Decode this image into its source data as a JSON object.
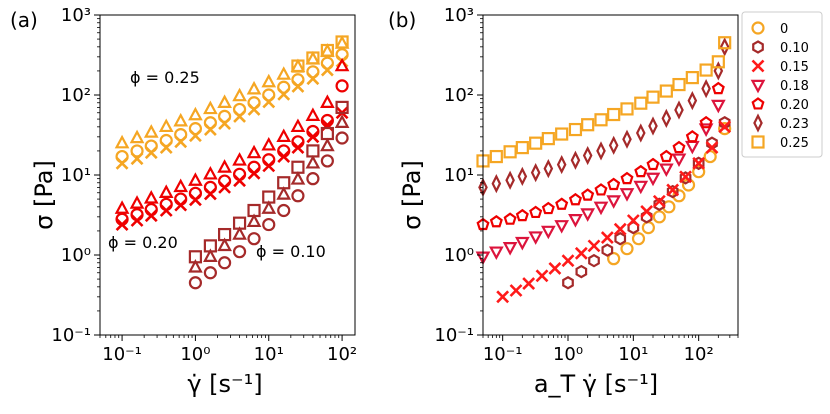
{
  "colors": {
    "phi_0": "#f5a623",
    "phi_0.10": "#a52a2a",
    "phi_0.15": "#ff1a1a",
    "phi_0.18": "#dc143c",
    "phi_0.20": "#ee0000",
    "phi_0.23": "#a52a2a",
    "phi_0.25": "#f5a623",
    "panel_a_low": "#a52a2a",
    "panel_a_mid": "#ee0000",
    "panel_a_high": "#f5a623"
  },
  "chart_data": [
    {
      "type": "scatter",
      "panel_label": "(a)",
      "xlabel": "γ̇ [s⁻¹]",
      "ylabel": "σ [Pa]",
      "xscale": "log",
      "yscale": "log",
      "xlim": [
        0.05,
        150
      ],
      "ylim": [
        0.1,
        1000
      ],
      "xticks": [
        "10⁻¹",
        "10⁰",
        "10¹",
        "10²"
      ],
      "yticks": [
        "10⁻¹",
        "10⁰",
        "10¹",
        "10²",
        "10³"
      ],
      "annotations": [
        {
          "text": "ϕ = 0.25",
          "x": 0.12,
          "y": 180
        },
        {
          "text": "ϕ = 0.20",
          "x": 0.07,
          "y": 1.3
        },
        {
          "text": "ϕ = 0.10",
          "x": 12,
          "y": 1.1
        }
      ],
      "series": [
        {
          "group": "0.25",
          "marker": "circle",
          "color_key": "panel_a_high",
          "x": [
            0.1,
            0.16,
            0.25,
            0.4,
            0.63,
            1,
            1.6,
            2.5,
            4,
            6.3,
            10,
            16,
            25,
            40,
            63,
            100
          ],
          "y": [
            17,
            20,
            23,
            27,
            32,
            38,
            45,
            54,
            66,
            80,
            100,
            125,
            155,
            195,
            250,
            320
          ]
        },
        {
          "group": "0.25",
          "marker": "x",
          "color_key": "panel_a_high",
          "x": [
            0.1,
            0.16,
            0.25,
            0.4,
            0.63,
            1,
            1.6,
            2.5,
            4,
            6.3,
            10,
            16,
            25,
            40,
            63,
            100
          ],
          "y": [
            14,
            16,
            19,
            22,
            26,
            31,
            37,
            44,
            54,
            66,
            82,
            102,
            128,
            160,
            205,
            265
          ]
        },
        {
          "group": "0.25",
          "marker": "triangle",
          "color_key": "panel_a_high",
          "x": [
            0.1,
            0.16,
            0.25,
            0.4,
            0.63,
            1,
            1.6,
            2.5,
            4,
            6.3,
            10,
            16,
            25,
            40,
            63,
            100
          ],
          "y": [
            25,
            29,
            34,
            40,
            47,
            56,
            67,
            80,
            97,
            118,
            145,
            180,
            225,
            280,
            350,
            440
          ]
        },
        {
          "group": "0.25",
          "marker": "square",
          "color_key": "panel_a_high",
          "x": [
            25,
            40,
            63,
            100
          ],
          "y": [
            230,
            290,
            360,
            460
          ]
        },
        {
          "group": "0.20",
          "marker": "circle",
          "color_key": "panel_a_mid",
          "x": [
            0.1,
            0.16,
            0.25,
            0.4,
            0.63,
            1,
            1.6,
            2.5,
            4,
            6.3,
            10,
            16,
            25,
            40,
            63,
            100
          ],
          "y": [
            2.8,
            3.2,
            3.7,
            4.3,
            5.0,
            5.9,
            7.0,
            8.4,
            10.2,
            12.5,
            15.5,
            20,
            26,
            35,
            48,
            130
          ]
        },
        {
          "group": "0.20",
          "marker": "x",
          "color_key": "panel_a_mid",
          "x": [
            0.1,
            0.16,
            0.25,
            0.4,
            0.63,
            1,
            1.6,
            2.5,
            4,
            6.3,
            10,
            16,
            25,
            40,
            63,
            100
          ],
          "y": [
            2.4,
            2.7,
            3.1,
            3.6,
            4.2,
            4.9,
            5.8,
            7.0,
            8.5,
            10.5,
            13,
            17,
            22,
            30,
            42,
            60
          ]
        },
        {
          "group": "0.20",
          "marker": "triangle",
          "color_key": "panel_a_mid",
          "x": [
            0.1,
            0.16,
            0.25,
            0.4,
            0.63,
            1,
            1.6,
            2.5,
            4,
            6.3,
            10,
            16,
            25,
            40,
            63,
            100
          ],
          "y": [
            3.8,
            4.4,
            5.1,
            6.0,
            7.1,
            8.5,
            10.2,
            12.4,
            15.2,
            18.8,
            23.5,
            30,
            40,
            55,
            80,
            230
          ]
        },
        {
          "group": "0.10",
          "marker": "circle",
          "color_key": "panel_a_low",
          "x": [
            1,
            1.6,
            2.5,
            4,
            6.3,
            10,
            16,
            25,
            40,
            63,
            100
          ],
          "y": [
            0.45,
            0.6,
            0.8,
            1.1,
            1.6,
            2.4,
            3.6,
            5.5,
            9,
            15,
            29
          ]
        },
        {
          "group": "0.10",
          "marker": "triangle",
          "color_key": "panel_a_low",
          "x": [
            1,
            1.6,
            2.5,
            4,
            6.3,
            10,
            16,
            25,
            40,
            63,
            100
          ],
          "y": [
            0.7,
            0.95,
            1.3,
            1.8,
            2.6,
            3.8,
            5.7,
            8.8,
            14,
            23,
            45
          ]
        },
        {
          "group": "0.10",
          "marker": "square",
          "color_key": "panel_a_low",
          "x": [
            1,
            1.6,
            2.5,
            4,
            6.3,
            10,
            16,
            25,
            40,
            63,
            100
          ],
          "y": [
            0.95,
            1.3,
            1.8,
            2.5,
            3.6,
            5.3,
            8,
            12.5,
            20,
            33,
            70
          ]
        }
      ]
    },
    {
      "type": "scatter",
      "panel_label": "(b)",
      "xlabel": "a_T γ̇ [s⁻¹]",
      "ylabel": "σ [Pa]",
      "xscale": "log",
      "yscale": "log",
      "xlim": [
        0.05,
        400
      ],
      "ylim": [
        0.1,
        1000
      ],
      "xticks": [
        "10⁻¹",
        "10⁰",
        "10¹",
        "10²"
      ],
      "yticks": [
        "10⁻¹",
        "10⁰",
        "10¹",
        "10²",
        "10³"
      ],
      "legend_position": "outside-right",
      "series": [
        {
          "name": "0",
          "marker": "circle",
          "color_key": "phi_0",
          "x": [
            5,
            8,
            12,
            17,
            25,
            35,
            50,
            70,
            100,
            150,
            250
          ],
          "y": [
            0.9,
            1.2,
            1.6,
            2.2,
            3.0,
            4.0,
            5.5,
            7.5,
            11,
            17,
            38
          ]
        },
        {
          "name": "0.10",
          "marker": "hexagon",
          "color_key": "phi_0.10",
          "x": [
            1,
            1.6,
            2.5,
            4,
            6.3,
            10,
            16,
            25,
            40,
            63,
            100,
            160,
            250
          ],
          "y": [
            0.45,
            0.62,
            0.85,
            1.15,
            1.6,
            2.2,
            3.0,
            4.3,
            6.2,
            9.2,
            14,
            25,
            45
          ]
        },
        {
          "name": "0.15",
          "marker": "x",
          "color_key": "phi_0.15",
          "x": [
            0.1,
            0.16,
            0.25,
            0.4,
            0.63,
            1,
            1.6,
            2.5,
            4,
            6.3,
            10,
            16,
            25,
            40,
            63,
            100,
            160,
            250
          ],
          "y": [
            0.3,
            0.36,
            0.44,
            0.55,
            0.68,
            0.85,
            1.05,
            1.3,
            1.65,
            2.1,
            2.7,
            3.5,
            4.7,
            6.5,
            9.5,
            14,
            22,
            40
          ]
        },
        {
          "name": "0.18",
          "marker": "triangle-down",
          "color_key": "phi_0.18",
          "x": [
            0.05,
            0.08,
            0.13,
            0.2,
            0.32,
            0.5,
            0.8,
            1.3,
            2,
            3.2,
            5,
            8,
            13,
            20,
            32,
            50,
            80,
            130,
            200
          ],
          "y": [
            0.95,
            1.1,
            1.25,
            1.45,
            1.7,
            2.0,
            2.35,
            2.8,
            3.3,
            4.0,
            4.8,
            5.9,
            7.3,
            9.2,
            12,
            16,
            23,
            38,
            75
          ]
        },
        {
          "name": "0.20",
          "marker": "pentagon",
          "color_key": "phi_0.20",
          "x": [
            0.05,
            0.08,
            0.13,
            0.2,
            0.32,
            0.5,
            0.8,
            1.3,
            2,
            3.2,
            5,
            8,
            13,
            20,
            32,
            50,
            80,
            130,
            200
          ],
          "y": [
            2.4,
            2.6,
            2.8,
            3.1,
            3.4,
            3.8,
            4.3,
            4.9,
            5.6,
            6.5,
            7.6,
            9.0,
            11,
            13.5,
            17,
            22,
            30,
            45,
            120
          ]
        },
        {
          "name": "0.23",
          "marker": "diamond",
          "color_key": "phi_0.23",
          "x": [
            0.05,
            0.08,
            0.13,
            0.2,
            0.32,
            0.5,
            0.8,
            1.3,
            2,
            3.2,
            5,
            8,
            13,
            20,
            32,
            50,
            80,
            130,
            200,
            250
          ],
          "y": [
            7,
            7.8,
            8.6,
            9.6,
            10.7,
            12,
            13.5,
            15.3,
            17.5,
            20,
            23.5,
            28,
            33.5,
            41,
            51,
            65,
            85,
            120,
            200,
            400
          ]
        },
        {
          "name": "0.25",
          "marker": "square",
          "color_key": "phi_0.25",
          "x": [
            0.05,
            0.08,
            0.13,
            0.2,
            0.32,
            0.5,
            0.8,
            1.3,
            2,
            3.2,
            5,
            8,
            13,
            20,
            32,
            50,
            80,
            130,
            200,
            250
          ],
          "y": [
            15,
            17,
            19.5,
            22,
            25,
            28.5,
            32.5,
            37,
            42.5,
            49,
            57,
            67,
            79,
            94,
            112,
            135,
            165,
            205,
            260,
            450
          ]
        }
      ]
    }
  ]
}
